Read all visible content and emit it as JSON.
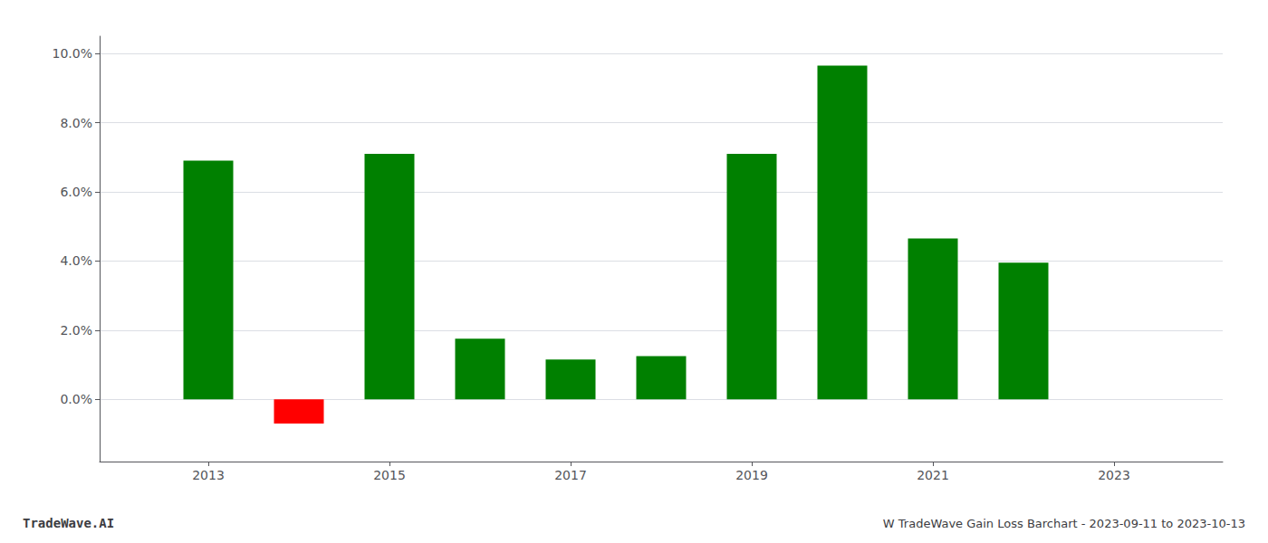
{
  "chart_data": {
    "type": "bar",
    "title": "W TradeWave Gain Loss Barchart - 2023-09-11 to 2023-10-13",
    "annotations": [
      "TradeWave.AI"
    ],
    "x": [
      2013,
      2014,
      2015,
      2016,
      2017,
      2018,
      2019,
      2020,
      2021,
      2022
    ],
    "values": [
      0.069,
      -0.007,
      0.071,
      0.0175,
      0.0115,
      0.0125,
      0.071,
      0.0965,
      0.0465,
      0.0395
    ],
    "colors": [
      "#008000",
      "#ff0000",
      "#008000",
      "#008000",
      "#008000",
      "#008000",
      "#008000",
      "#008000",
      "#008000",
      "#008000"
    ],
    "xlim": [
      2011.8,
      2024.2
    ],
    "xticks": [
      2013,
      2015,
      2017,
      2019,
      2021,
      2023
    ],
    "ylim": [
      -0.018,
      0.105
    ],
    "yticks": [
      {
        "value": 0.0,
        "label": "0.0%"
      },
      {
        "value": 0.02,
        "label": "2.0%"
      },
      {
        "value": 0.04,
        "label": "4.0%"
      },
      {
        "value": 0.06,
        "label": "6.0%"
      },
      {
        "value": 0.08,
        "label": "8.0%"
      },
      {
        "value": 0.1,
        "label": "10.0%"
      }
    ],
    "grid": true
  }
}
